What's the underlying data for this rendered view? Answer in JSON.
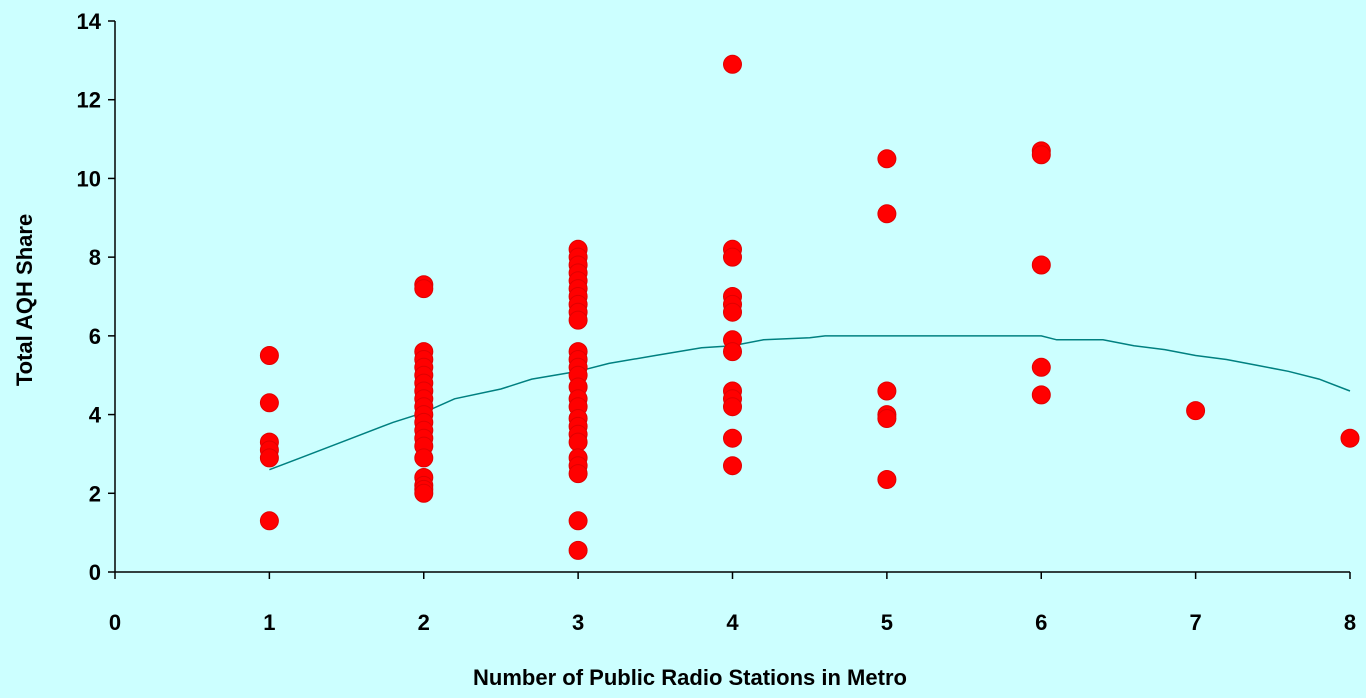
{
  "chart_data": {
    "type": "scatter",
    "title": "",
    "xlabel": "Number of Public Radio Stations in Metro",
    "ylabel": "Total AQH Share",
    "xlim": [
      0,
      8
    ],
    "ylim": [
      0,
      14
    ],
    "x_ticks": [
      "0",
      "1",
      "2",
      "3",
      "4",
      "5",
      "6",
      "7",
      "8"
    ],
    "y_ticks": [
      "0",
      "2",
      "4",
      "6",
      "8",
      "10",
      "12",
      "14"
    ],
    "grid": false,
    "legend": "none",
    "colors": {
      "background": "#ccffff",
      "points": "#ff0000",
      "trend": "#008080",
      "axis": "#000000"
    },
    "series": [
      {
        "type": "scatter",
        "points": [
          [
            1,
            5.5
          ],
          [
            1,
            4.3
          ],
          [
            1,
            3.3
          ],
          [
            1,
            3.1
          ],
          [
            1,
            2.9
          ],
          [
            1,
            1.3
          ],
          [
            2,
            7.3
          ],
          [
            2,
            7.2
          ],
          [
            2,
            5.6
          ],
          [
            2,
            5.4
          ],
          [
            2,
            5.2
          ],
          [
            2,
            5.0
          ],
          [
            2,
            4.8
          ],
          [
            2,
            4.6
          ],
          [
            2,
            4.4
          ],
          [
            2,
            4.2
          ],
          [
            2,
            4.0
          ],
          [
            2,
            3.8
          ],
          [
            2,
            3.6
          ],
          [
            2,
            3.4
          ],
          [
            2,
            3.2
          ],
          [
            2,
            2.9
          ],
          [
            2,
            2.4
          ],
          [
            2,
            2.2
          ],
          [
            2,
            2.1
          ],
          [
            2,
            2.0
          ],
          [
            3,
            8.2
          ],
          [
            3,
            8.0
          ],
          [
            3,
            7.8
          ],
          [
            3,
            7.6
          ],
          [
            3,
            7.4
          ],
          [
            3,
            7.2
          ],
          [
            3,
            7.0
          ],
          [
            3,
            6.8
          ],
          [
            3,
            6.6
          ],
          [
            3,
            6.4
          ],
          [
            3,
            5.6
          ],
          [
            3,
            5.4
          ],
          [
            3,
            5.2
          ],
          [
            3,
            5.0
          ],
          [
            3,
            4.7
          ],
          [
            3,
            4.4
          ],
          [
            3,
            4.2
          ],
          [
            3,
            3.9
          ],
          [
            3,
            3.7
          ],
          [
            3,
            3.5
          ],
          [
            3,
            3.3
          ],
          [
            3,
            2.9
          ],
          [
            3,
            2.7
          ],
          [
            3,
            2.5
          ],
          [
            3,
            1.3
          ],
          [
            3,
            0.55
          ],
          [
            4,
            12.9
          ],
          [
            4,
            8.2
          ],
          [
            4,
            8.0
          ],
          [
            4,
            7.0
          ],
          [
            4,
            6.8
          ],
          [
            4,
            6.6
          ],
          [
            4,
            5.9
          ],
          [
            4,
            5.6
          ],
          [
            4,
            4.6
          ],
          [
            4,
            4.4
          ],
          [
            4,
            4.2
          ],
          [
            4,
            3.4
          ],
          [
            4,
            2.7
          ],
          [
            5,
            10.5
          ],
          [
            5,
            9.1
          ],
          [
            5,
            4.6
          ],
          [
            5,
            4.0
          ],
          [
            5,
            3.9
          ],
          [
            5,
            2.35
          ],
          [
            6,
            10.7
          ],
          [
            6,
            10.6
          ],
          [
            6,
            7.8
          ],
          [
            6,
            5.2
          ],
          [
            6,
            4.5
          ],
          [
            7,
            4.1
          ],
          [
            8,
            3.4
          ]
        ]
      },
      {
        "type": "line",
        "points": [
          [
            1.0,
            2.6
          ],
          [
            1.2,
            2.9
          ],
          [
            1.5,
            3.35
          ],
          [
            1.8,
            3.8
          ],
          [
            2.0,
            4.05
          ],
          [
            2.2,
            4.4
          ],
          [
            2.5,
            4.65
          ],
          [
            2.7,
            4.9
          ],
          [
            3.0,
            5.1
          ],
          [
            3.2,
            5.3
          ],
          [
            3.5,
            5.5
          ],
          [
            3.8,
            5.7
          ],
          [
            4.0,
            5.75
          ],
          [
            4.2,
            5.9
          ],
          [
            4.5,
            5.95
          ],
          [
            4.6,
            6.0
          ],
          [
            5.0,
            6.0
          ],
          [
            5.5,
            6.0
          ],
          [
            6.0,
            6.0
          ],
          [
            6.1,
            5.9
          ],
          [
            6.4,
            5.9
          ],
          [
            6.6,
            5.75
          ],
          [
            6.8,
            5.65
          ],
          [
            7.0,
            5.5
          ],
          [
            7.2,
            5.4
          ],
          [
            7.4,
            5.25
          ],
          [
            7.6,
            5.1
          ],
          [
            7.8,
            4.9
          ],
          [
            8.0,
            4.6
          ]
        ]
      }
    ]
  }
}
